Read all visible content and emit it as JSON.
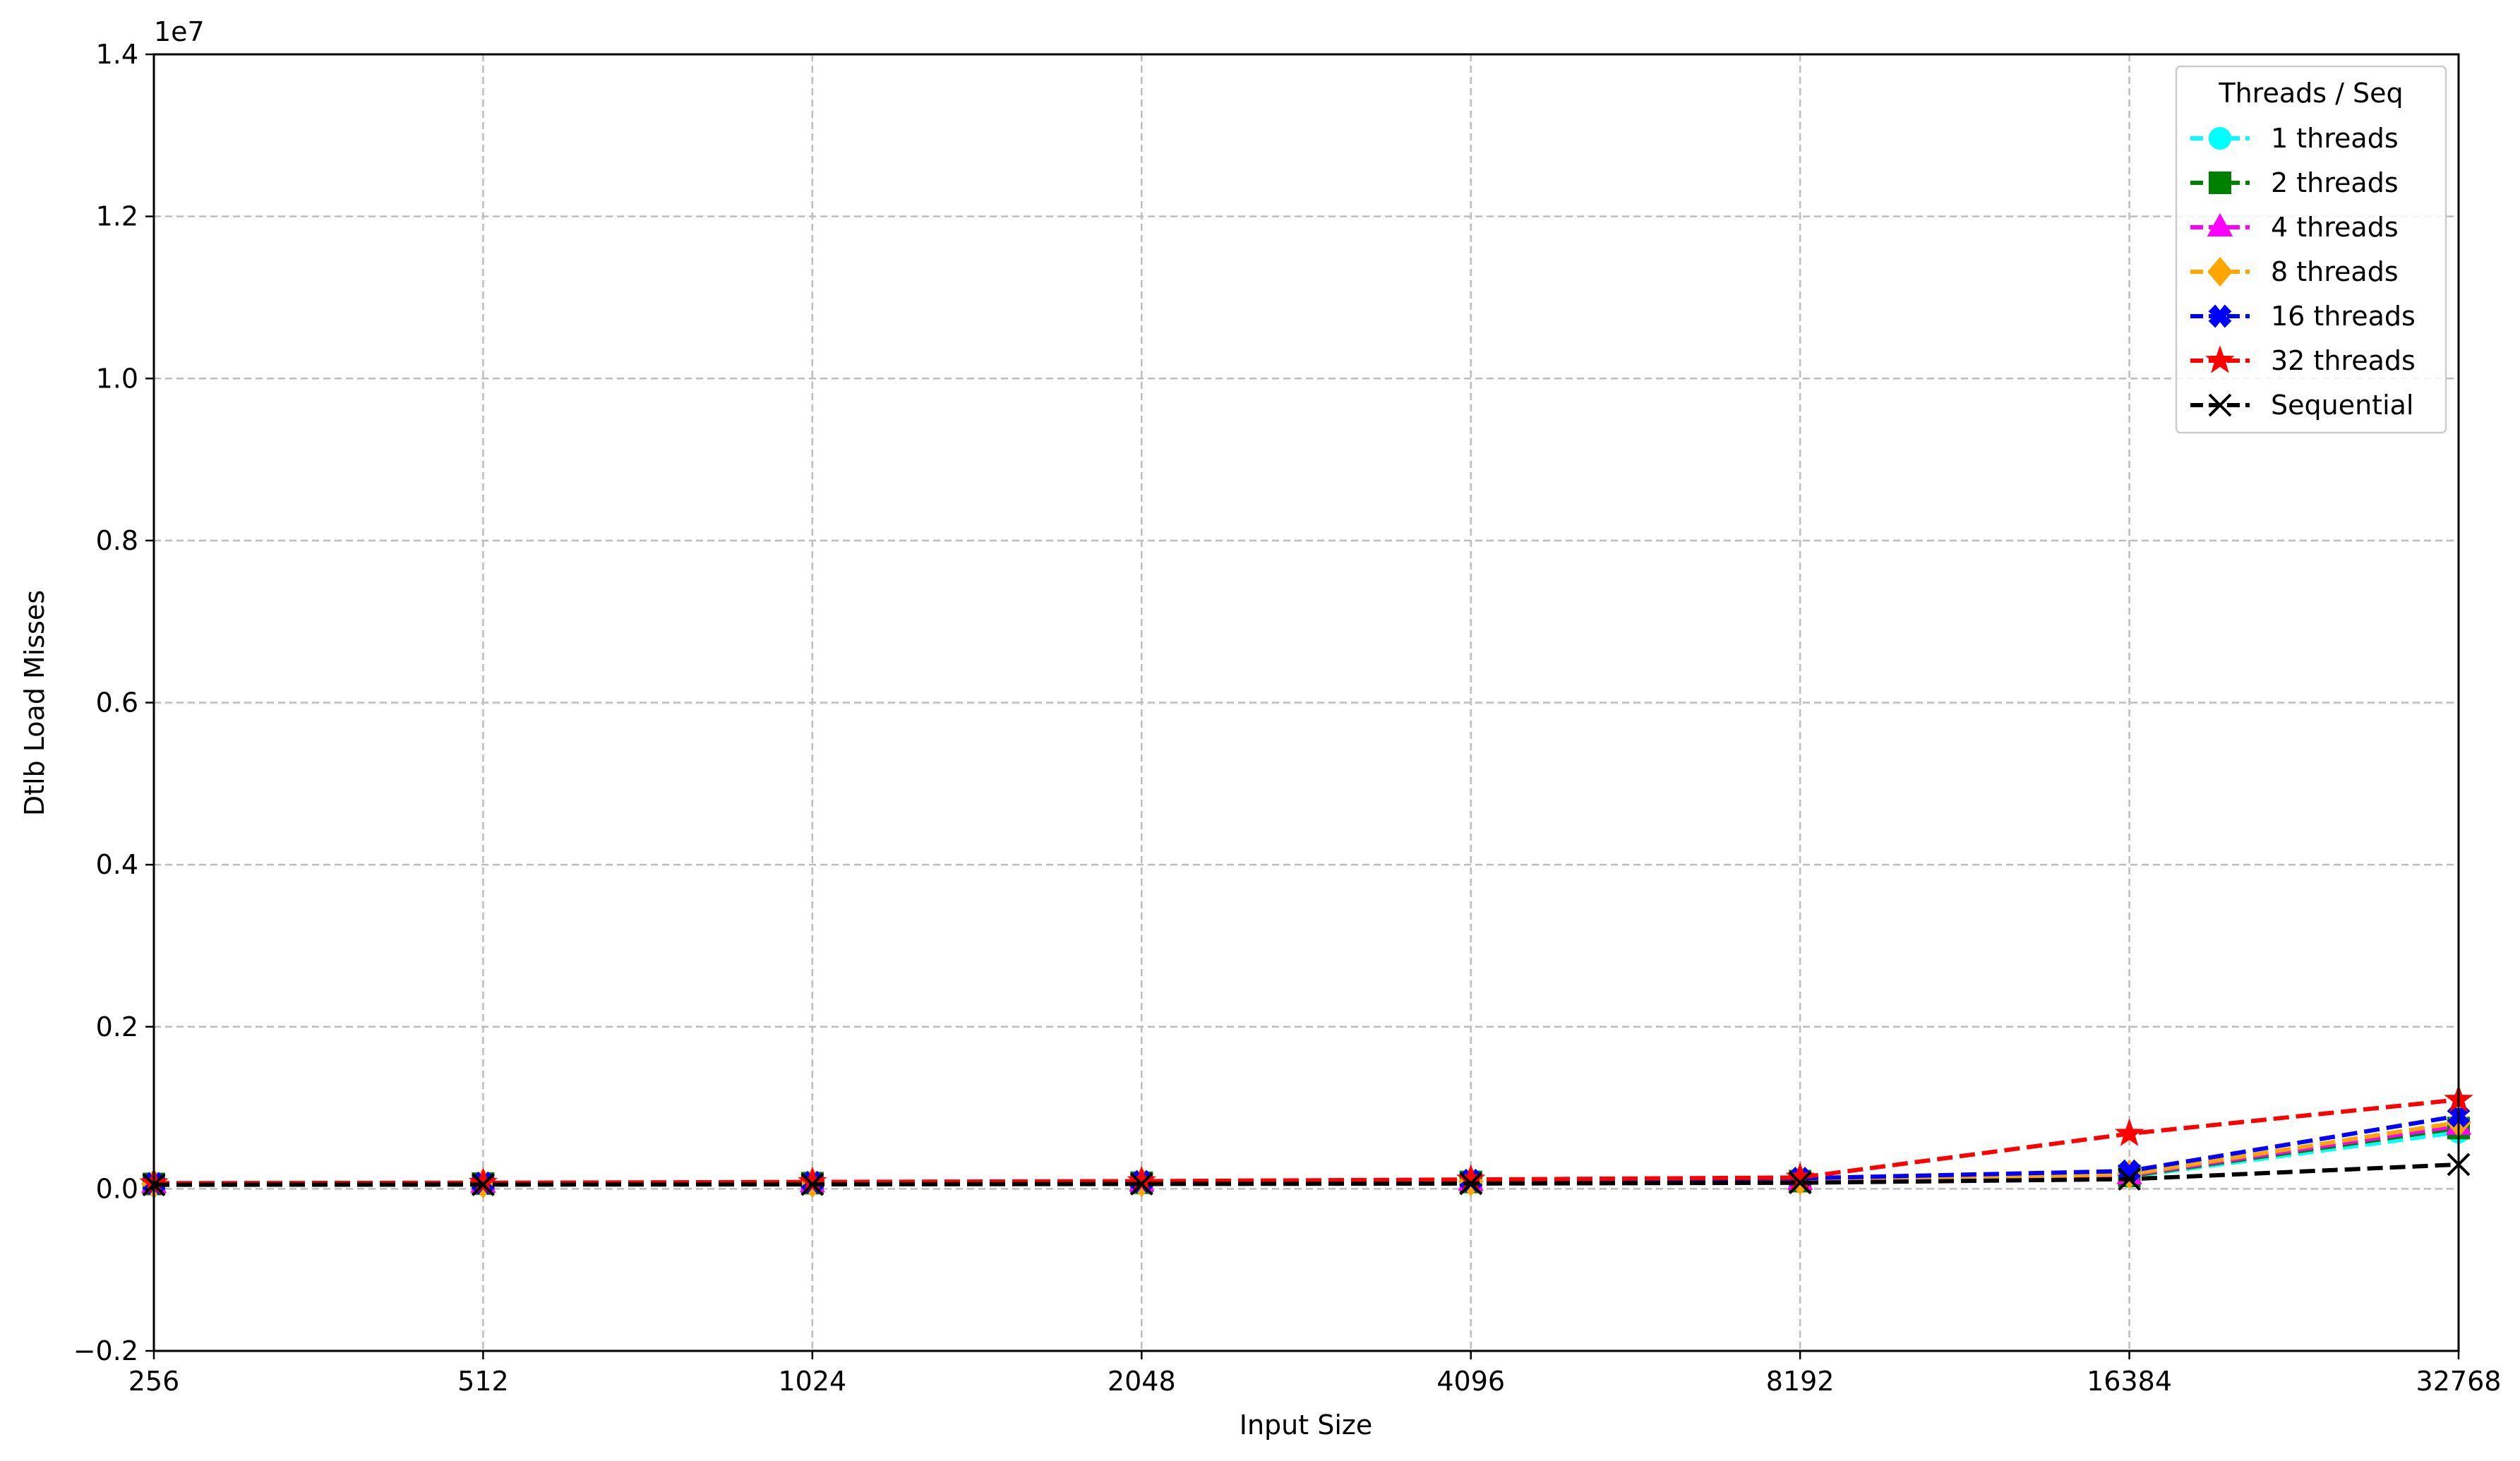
{
  "chart_data": {
    "type": "line",
    "title": "",
    "xlabel": "Input Size",
    "ylabel": "Dtlb Load Misses",
    "y_offset_label": "1e7",
    "x_scale": "log2",
    "x": [
      256,
      512,
      1024,
      2048,
      4096,
      8192,
      16384,
      32768
    ],
    "x_tick_labels": [
      "256",
      "512",
      "1024",
      "2048",
      "4096",
      "8192",
      "16384",
      "32768"
    ],
    "xlim": [
      256,
      32768
    ],
    "ylim": [
      -2000000,
      14000000
    ],
    "y_ticks": [
      -2000000,
      0,
      2000000,
      4000000,
      6000000,
      8000000,
      10000000,
      12000000,
      14000000
    ],
    "y_tick_labels": [
      "−0.2",
      "0.0",
      "0.2",
      "0.4",
      "0.6",
      "0.8",
      "1.0",
      "1.2",
      "1.4"
    ],
    "grid": true,
    "legend_title": "Threads / Seq",
    "legend_position": "top-right",
    "series": [
      {
        "name": "1 threads",
        "color": "#00ffff",
        "marker": "circle",
        "values": [
          60000,
          65000,
          70000,
          75000,
          80000,
          90000,
          150000,
          700000
        ]
      },
      {
        "name": "2 threads",
        "color": "#008000",
        "marker": "square",
        "values": [
          60000,
          65000,
          70000,
          75000,
          85000,
          95000,
          160000,
          750000
        ]
      },
      {
        "name": "4 threads",
        "color": "#ff00ff",
        "marker": "triangle",
        "values": [
          60000,
          65000,
          70000,
          78000,
          88000,
          100000,
          170000,
          780000
        ]
      },
      {
        "name": "8 threads",
        "color": "#ffa500",
        "marker": "diamond",
        "values": [
          60000,
          65000,
          72000,
          80000,
          90000,
          105000,
          180000,
          820000
        ]
      },
      {
        "name": "16 threads",
        "color": "#0000ff",
        "marker": "x-filled",
        "values": [
          65000,
          70000,
          80000,
          90000,
          105000,
          130000,
          220000,
          900000
        ]
      },
      {
        "name": "32 threads",
        "color": "#ff0000",
        "marker": "star",
        "values": [
          70000,
          75000,
          85000,
          95000,
          115000,
          140000,
          680000,
          1100000
        ]
      },
      {
        "name": "Sequential",
        "color": "#000000",
        "marker": "x",
        "values": [
          50000,
          52000,
          55000,
          60000,
          65000,
          75000,
          120000,
          300000
        ]
      }
    ]
  }
}
